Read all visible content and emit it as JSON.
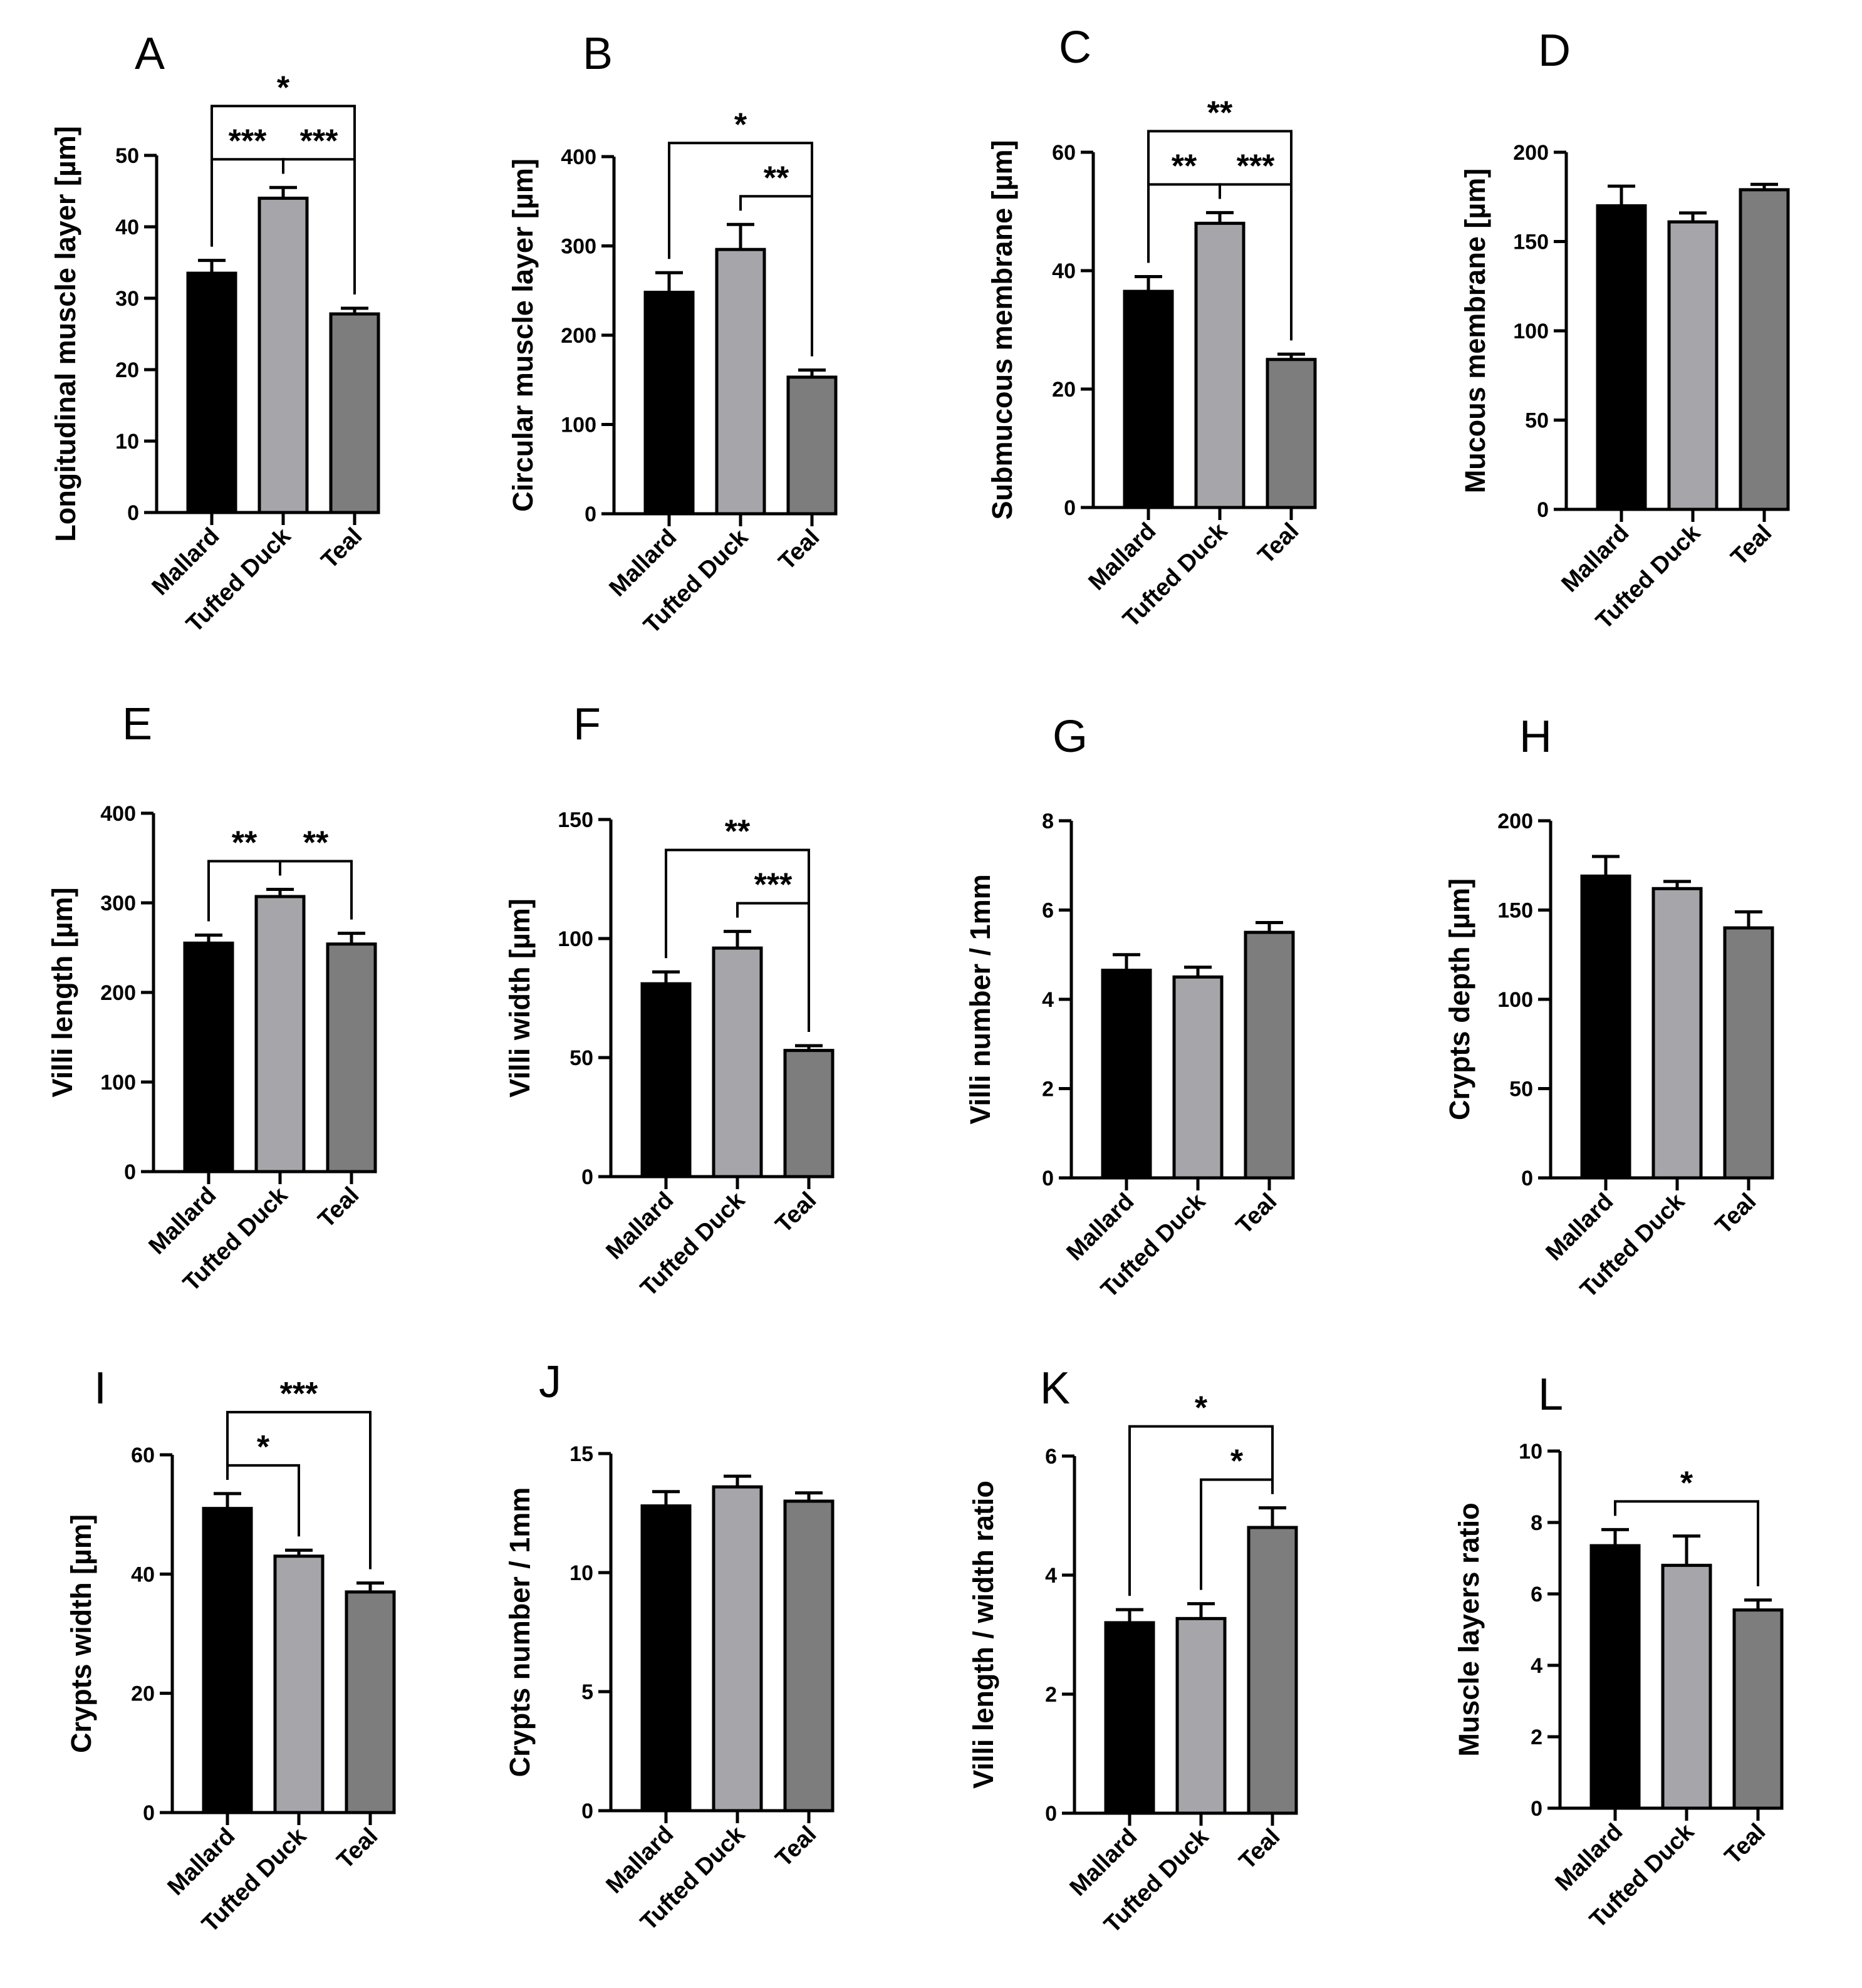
{
  "colors": {
    "Mallard": "#000000",
    "Tufted Duck": "#a5a5aa",
    "Teal": "#7d7d7d",
    "stroke": "#000000"
  },
  "chart_data": [
    {
      "panel": "A",
      "type": "bar",
      "categories": [
        "Mallard",
        "Tufted Duck",
        "Teal"
      ],
      "values": [
        33.5,
        44,
        27.8
      ],
      "errors": [
        1.8,
        1.5,
        0.8
      ],
      "ylabel": "Longitudinal muscle layer [µm]",
      "ylim": [
        0,
        50
      ],
      "yticks": [
        0,
        10,
        20,
        30,
        40,
        50
      ],
      "significance": [
        {
          "from": 0,
          "to": 2,
          "label": "*"
        },
        {
          "from": 0,
          "to": 1,
          "label": "***"
        },
        {
          "from": 1,
          "to": 2,
          "label": "***"
        }
      ]
    },
    {
      "panel": "B",
      "type": "bar",
      "categories": [
        "Mallard",
        "Tufted Duck",
        "Teal"
      ],
      "values": [
        248,
        296,
        153
      ],
      "errors": [
        22,
        28,
        8
      ],
      "ylabel": "Circular muscle layer [µm]",
      "ylim": [
        0,
        400
      ],
      "yticks": [
        0,
        100,
        200,
        300,
        400
      ],
      "significance": [
        {
          "from": 0,
          "to": 2,
          "label": "*"
        },
        {
          "from": 1,
          "to": 2,
          "label": "**"
        }
      ]
    },
    {
      "panel": "C",
      "type": "bar",
      "categories": [
        "Mallard",
        "Tufted Duck",
        "Teal"
      ],
      "values": [
        36.5,
        48,
        25
      ],
      "errors": [
        2.5,
        1.8,
        0.9
      ],
      "ylabel": "Submucous membrane [µm]",
      "ylim": [
        0,
        60
      ],
      "yticks": [
        0,
        20,
        40,
        60
      ],
      "significance": [
        {
          "from": 0,
          "to": 2,
          "label": "**"
        },
        {
          "from": 0,
          "to": 1,
          "label": "**"
        },
        {
          "from": 1,
          "to": 2,
          "label": "***"
        }
      ]
    },
    {
      "panel": "D",
      "type": "bar",
      "categories": [
        "Mallard",
        "Tufted Duck",
        "Teal"
      ],
      "values": [
        170,
        161,
        179
      ],
      "errors": [
        11,
        5,
        3
      ],
      "ylabel": "Mucous membrane [µm]",
      "ylim": [
        0,
        200
      ],
      "yticks": [
        0,
        50,
        100,
        150,
        200
      ],
      "significance": []
    },
    {
      "panel": "E",
      "type": "bar",
      "categories": [
        "Mallard",
        "Tufted Duck",
        "Teal"
      ],
      "values": [
        255,
        307,
        254
      ],
      "errors": [
        9,
        8,
        12
      ],
      "ylabel": "Villi length [µm]",
      "ylim": [
        0,
        400
      ],
      "yticks": [
        0,
        100,
        200,
        300,
        400
      ],
      "significance": [
        {
          "from": 0,
          "to": 1,
          "label": "**"
        },
        {
          "from": 1,
          "to": 2,
          "label": "**"
        }
      ]
    },
    {
      "panel": "F",
      "type": "bar",
      "categories": [
        "Mallard",
        "Tufted Duck",
        "Teal"
      ],
      "values": [
        81,
        96,
        53
      ],
      "errors": [
        5,
        7,
        2
      ],
      "ylabel": "Villi width [µm]",
      "ylim": [
        0,
        150
      ],
      "yticks": [
        0,
        50,
        100,
        150
      ],
      "significance": [
        {
          "from": 0,
          "to": 2,
          "label": "**"
        },
        {
          "from": 1,
          "to": 2,
          "label": "***"
        }
      ]
    },
    {
      "panel": "G",
      "type": "bar",
      "categories": [
        "Mallard",
        "Tufted Duck",
        "Teal"
      ],
      "values": [
        4.65,
        4.5,
        5.5
      ],
      "errors": [
        0.35,
        0.22,
        0.22
      ],
      "ylabel": "Villi number / 1mm",
      "ylim": [
        0,
        8
      ],
      "yticks": [
        0,
        2,
        4,
        6,
        8
      ],
      "significance": []
    },
    {
      "panel": "H",
      "type": "bar",
      "categories": [
        "Mallard",
        "Tufted Duck",
        "Teal"
      ],
      "values": [
        169,
        162,
        140
      ],
      "errors": [
        11,
        4,
        9
      ],
      "ylabel": "Crypts depth [µm]",
      "ylim": [
        0,
        200
      ],
      "yticks": [
        0,
        50,
        100,
        150,
        200
      ],
      "significance": []
    },
    {
      "panel": "I",
      "type": "bar",
      "categories": [
        "Mallard",
        "Tufted Duck",
        "Teal"
      ],
      "values": [
        51,
        43,
        37
      ],
      "errors": [
        2.5,
        1,
        1.5
      ],
      "ylabel": "Crypts width [µm]",
      "ylim": [
        0,
        60
      ],
      "yticks": [
        0,
        20,
        40,
        60
      ],
      "significance": [
        {
          "from": 0,
          "to": 2,
          "label": "***"
        },
        {
          "from": 0,
          "to": 1,
          "label": "*"
        }
      ]
    },
    {
      "panel": "J",
      "type": "bar",
      "categories": [
        "Mallard",
        "Tufted Duck",
        "Teal"
      ],
      "values": [
        12.8,
        13.6,
        13
      ],
      "errors": [
        0.6,
        0.45,
        0.35
      ],
      "ylabel": "Crypts number / 1mm",
      "ylim": [
        0,
        15
      ],
      "yticks": [
        0,
        5,
        10,
        15
      ],
      "significance": []
    },
    {
      "panel": "K",
      "type": "bar",
      "categories": [
        "Mallard",
        "Tufted Duck",
        "Teal"
      ],
      "values": [
        3.2,
        3.27,
        4.8
      ],
      "errors": [
        0.22,
        0.25,
        0.33
      ],
      "ylabel": "Villi length / width ratio",
      "ylim": [
        0,
        6
      ],
      "yticks": [
        0,
        2,
        4,
        6
      ],
      "significance": [
        {
          "from": 0,
          "to": 2,
          "label": "*"
        },
        {
          "from": 1,
          "to": 2,
          "label": "*"
        }
      ]
    },
    {
      "panel": "L",
      "type": "bar",
      "categories": [
        "Mallard",
        "Tufted Duck",
        "Teal"
      ],
      "values": [
        7.35,
        6.8,
        5.55
      ],
      "errors": [
        0.45,
        0.82,
        0.28
      ],
      "ylabel": "Muscle layers ratio",
      "ylim": [
        0,
        10
      ],
      "yticks": [
        0,
        2,
        4,
        6,
        8,
        10
      ],
      "significance": [
        {
          "from": 0,
          "to": 2,
          "label": "*"
        }
      ]
    }
  ]
}
